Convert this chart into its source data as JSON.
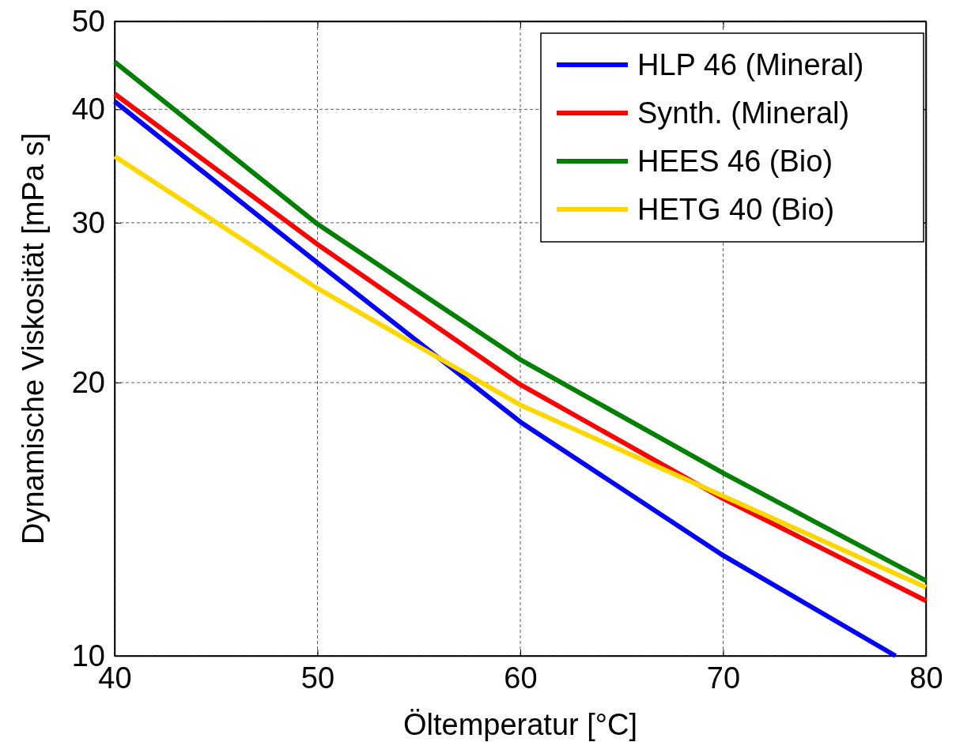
{
  "chart_data": {
    "type": "line",
    "xlabel": "Öltemperatur [°C]",
    "ylabel": "Dynamische Viskosität [mPa s]",
    "xlim": [
      40,
      80
    ],
    "xticks": [
      40,
      50,
      60,
      70,
      80
    ],
    "ylim": [
      10,
      50
    ],
    "yticks": [
      10,
      20,
      30,
      40,
      50
    ],
    "log": "y",
    "grid": true,
    "legend": "top right",
    "line_style": "solid",
    "marker": "none",
    "series": [
      {
        "name": "HLP 46 (Mineral)",
        "color": "#0000ff",
        "x": [
          40,
          50,
          60,
          70,
          78.5
        ],
        "values": [
          40.8,
          27.1,
          18.1,
          12.9,
          10
        ]
      },
      {
        "name": "Synth. (Mineral)",
        "color": "#ff0000",
        "x": [
          40,
          50,
          60,
          70,
          80
        ],
        "values": [
          41.6,
          28.4,
          19.9,
          14.9,
          11.5
        ]
      },
      {
        "name": "HEES 46 (Bio)",
        "color": "#008000",
        "x": [
          40,
          50,
          60,
          70,
          80
        ],
        "values": [
          45.1,
          29.9,
          21.2,
          15.9,
          12.1
        ]
      },
      {
        "name": "HETG 40 (Bio)",
        "color": "#ffd700",
        "x": [
          40,
          50,
          60,
          70,
          80
        ],
        "values": [
          35.5,
          25.4,
          18.9,
          15.0,
          11.9
        ]
      }
    ]
  }
}
